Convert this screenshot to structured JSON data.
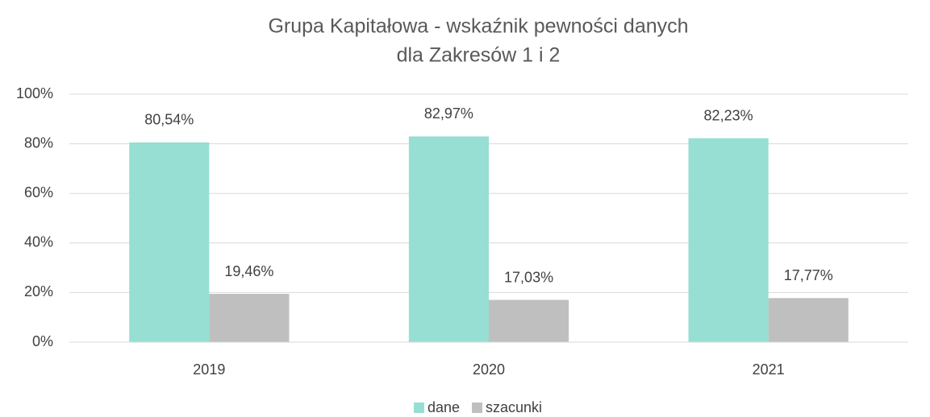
{
  "chart_data": {
    "type": "bar",
    "title": [
      "Grupa Kapitałowa - wskaźnik pewności danych",
      "dla Zakresów 1 i 2"
    ],
    "categories": [
      "2019",
      "2020",
      "2021"
    ],
    "series": [
      {
        "name": "dane",
        "color": "#96dfd2",
        "values": [
          80.54,
          82.97,
          82.23
        ],
        "value_labels": [
          "80,54%",
          "82,97%",
          "82,23%"
        ]
      },
      {
        "name": "szacunki",
        "color": "#bfbfbf",
        "values": [
          19.46,
          17.03,
          17.77
        ],
        "value_labels": [
          "19,46%",
          "17,03%",
          "17,77%"
        ]
      }
    ],
    "ylim": [
      0,
      100
    ],
    "yticks": [
      {
        "value": 0,
        "label": "0%"
      },
      {
        "value": 20,
        "label": "20%"
      },
      {
        "value": 40,
        "label": "40%"
      },
      {
        "value": 60,
        "label": "60%"
      },
      {
        "value": 80,
        "label": "80%"
      },
      {
        "value": 100,
        "label": "100%"
      }
    ],
    "grid": true,
    "legend": "bottom"
  }
}
